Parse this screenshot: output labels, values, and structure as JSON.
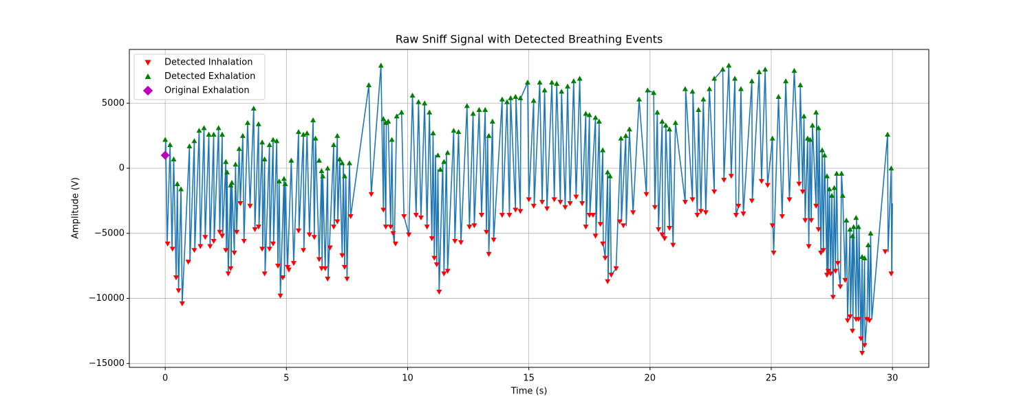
{
  "chart_data": {
    "type": "line",
    "title": "Raw Sniff Signal with Detected Breathing Events",
    "x_label": "Time (s)",
    "y_label": "Amplitude (V)",
    "xlim": [
      -1.48,
      31.5
    ],
    "ylim": [
      -15300,
      9130
    ],
    "xticks": [
      0,
      5,
      10,
      15,
      20,
      25,
      30
    ],
    "yticks": [
      {
        "value": -15000,
        "label": "−15000"
      },
      {
        "value": -10000,
        "label": "−10000"
      },
      {
        "value": -5000,
        "label": "−5000"
      },
      0,
      5000
    ],
    "grid": true,
    "legend": "upper left",
    "signal": {
      "color": "#1f77b4",
      "x": [
        0,
        0.02,
        0.08,
        0.2,
        0.28,
        0.35,
        0.45,
        0.5,
        0.55,
        0.65,
        0.7,
        1.0,
        1.02,
        1.2,
        1.22,
        1.4,
        1.45,
        1.6,
        1.65,
        1.8,
        1.85,
        2.0,
        2.02,
        2.2,
        2.25,
        2.35,
        2.37,
        2.5,
        2.52,
        2.55,
        2.6,
        2.7,
        2.72,
        2.75,
        2.85,
        2.9,
        2.95,
        3.05,
        3.1,
        3.2,
        3.25,
        3.4,
        3.5,
        3.65,
        3.7,
        3.85,
        3.87,
        4.0,
        4.02,
        4.1,
        4.12,
        4.3,
        4.32,
        4.45,
        4.47,
        4.6,
        4.65,
        4.7,
        4.75,
        4.9,
        4.92,
        4.95,
        5.05,
        5.2,
        5.3,
        5.5,
        5.52,
        5.7,
        5.72,
        5.85,
        5.95,
        6.1,
        6.15,
        6.2,
        6.35,
        6.45,
        6.47,
        6.5,
        6.6,
        6.7,
        6.72,
        6.95,
        6.97,
        7.1,
        7.12,
        7.2,
        7.3,
        7.35,
        7.4,
        7.45,
        7.5,
        7.6,
        7.65,
        8.4,
        8.5,
        8.9,
        9.0,
        9.02,
        9.1,
        9.12,
        9.2,
        9.3,
        9.35,
        9.4,
        9.45,
        9.55,
        9.75,
        9.85,
        10.05,
        10.2,
        10.35,
        10.45,
        10.55,
        10.7,
        10.8,
        10.9,
        11.0,
        11.05,
        11.1,
        11.15,
        11.2,
        11.25,
        11.3,
        11.45,
        11.5,
        11.6,
        11.65,
        11.9,
        11.95,
        12.1,
        12.2,
        12.45,
        12.55,
        12.7,
        12.75,
        12.95,
        13.05,
        13.2,
        13.25,
        13.3,
        13.35,
        13.5,
        13.55,
        13.9,
        13.92,
        14.1,
        14.2,
        14.25,
        14.45,
        14.47,
        14.65,
        14.67,
        14.95,
        15.0,
        15.2,
        15.22,
        15.45,
        15.55,
        15.65,
        15.75,
        15.95,
        16.05,
        16.15,
        16.3,
        16.35,
        16.5,
        16.6,
        16.7,
        16.85,
        16.95,
        17.1,
        17.2,
        17.35,
        17.37,
        17.5,
        17.52,
        17.75,
        17.77,
        17.9,
        17.95,
        18.05,
        18.07,
        18.15,
        18.25,
        18.27,
        18.35,
        18.4,
        18.6,
        18.8,
        18.82,
        19.0,
        19.02,
        19.15,
        19.3,
        19.55,
        19.85,
        19.9,
        20.15,
        20.2,
        20.3,
        20.35,
        20.5,
        20.52,
        20.6,
        20.65,
        20.8,
        20.82,
        20.95,
        21.05,
        21.45,
        21.47,
        21.75,
        21.77,
        21.95,
        22.0,
        22.1,
        22.2,
        22.3,
        22.45,
        22.65,
        22.67,
        23.0,
        23.05,
        23.25,
        23.35,
        23.5,
        23.55,
        23.65,
        23.75,
        23.85,
        24.2,
        24.22,
        24.5,
        24.6,
        24.75,
        24.85,
        25.05,
        25.07,
        25.1,
        25.3,
        25.45,
        25.6,
        25.75,
        25.95,
        26.15,
        26.2,
        26.3,
        26.35,
        26.4,
        26.5,
        26.55,
        26.6,
        26.65,
        26.7,
        26.85,
        26.87,
        26.95,
        26.97,
        27.05,
        27.1,
        27.15,
        27.2,
        27.3,
        27.32,
        27.35,
        27.4,
        27.45,
        27.5,
        27.55,
        27.6,
        27.65,
        27.7,
        27.75,
        27.85,
        27.9,
        27.95,
        28.05,
        28.1,
        28.15,
        28.25,
        28.27,
        28.35,
        28.37,
        28.4,
        28.5,
        28.52,
        28.6,
        28.62,
        28.7,
        28.75,
        28.77,
        28.85,
        28.87,
        28.95,
        29.0,
        29.05,
        29.1,
        29.15,
        29.8,
        29.82,
        29.95,
        29.97,
        30.0
      ],
      "values": [
        1000,
        2200,
        -5800,
        1800,
        -6200,
        700,
        -8400,
        -1200,
        -9400,
        -1600,
        -10400,
        1700,
        -7200,
        2100,
        -6300,
        2900,
        -6000,
        3100,
        -5300,
        2600,
        -6000,
        2600,
        -5600,
        3100,
        -4900,
        2600,
        -5200,
        500,
        -6300,
        -300,
        -8100,
        -1300,
        -7700,
        -1100,
        -6500,
        300,
        -4900,
        1500,
        -2700,
        2500,
        -5600,
        3500,
        -2900,
        4600,
        -4700,
        3400,
        -4500,
        2000,
        -6200,
        700,
        -8100,
        1800,
        -6200,
        2200,
        -5800,
        2100,
        -7500,
        -1000,
        -9800,
        -800,
        -8400,
        -1200,
        -7600,
        600,
        -7300,
        2800,
        -4800,
        2600,
        -6300,
        2700,
        -5100,
        3700,
        -5300,
        2300,
        -7000,
        -200,
        -7700,
        -600,
        -7700,
        0,
        -8500,
        1800,
        -4500,
        2500,
        -4100,
        700,
        -6700,
        400,
        -7600,
        -600,
        -8500,
        400,
        -3700,
        6400,
        -2000,
        7900,
        -3200,
        3800,
        -4500,
        3500,
        3600,
        -4500,
        2200,
        -5000,
        -5800,
        4000,
        4300,
        -3700,
        -5100,
        5600,
        -3600,
        5100,
        -3800,
        5000,
        -4500,
        4300,
        -5400,
        2700,
        -6900,
        1000,
        -7400,
        -100,
        -9500,
        500,
        -8100,
        1200,
        -7900,
        2900,
        -5600,
        2800,
        -5700,
        4800,
        -4500,
        4200,
        -4400,
        4500,
        -3600,
        4500,
        -4900,
        2500,
        -6600,
        3600,
        -5500,
        5300,
        -3600,
        5100,
        -3600,
        5400,
        -3200,
        5500,
        -3300,
        5400,
        6600,
        -2400,
        5200,
        -2900,
        6600,
        -2600,
        6000,
        -3100,
        6600,
        -2400,
        6500,
        -2600,
        5900,
        -3000,
        6300,
        -2700,
        6700,
        -2200,
        6900,
        -2700,
        4200,
        -4500,
        4100,
        -3600,
        3900,
        -5200,
        3600,
        -4300,
        1400,
        -5800,
        -6900,
        -300,
        -8700,
        -600,
        -8200,
        -7700,
        2300,
        -4100,
        2500,
        -4400,
        3000,
        -3400,
        5300,
        -2000,
        6000,
        5800,
        -3000,
        4300,
        -4700,
        3600,
        -5100,
        -5400,
        3300,
        -4600,
        3000,
        -5900,
        3500,
        -2600,
        6100,
        -2400,
        5900,
        -3600,
        4500,
        -3300,
        5300,
        -3400,
        6100,
        -1800,
        6900,
        7600,
        -900,
        7900,
        -600,
        6900,
        -3600,
        -2900,
        6100,
        -3500,
        6700,
        -2500,
        7400,
        -1000,
        7600,
        -1300,
        2300,
        -4400,
        -6500,
        5500,
        -3700,
        6700,
        -2400,
        7500,
        -1200,
        6400,
        -1800,
        4000,
        -4000,
        2300,
        -6000,
        2200,
        -4000,
        3300,
        -2900,
        4300,
        -4700,
        3100,
        -6500,
        1400,
        -6300,
        1000,
        -8200,
        -600,
        -7900,
        -1600,
        -8100,
        -2100,
        -9900,
        -1500,
        -7900,
        -400,
        -7300,
        -9100,
        -400,
        -2100,
        -8600,
        -4000,
        -11700,
        -4700,
        -11400,
        -5200,
        -12500,
        -4500,
        -11600,
        -3800,
        -11600,
        -4500,
        -13100,
        -6800,
        -14200,
        -6900,
        -13600,
        -11600,
        -5900,
        -11700,
        -5000,
        -11600,
        2600,
        -6400,
        0,
        -8100,
        -2700
      ]
    },
    "series": [
      {
        "name": "Detected Inhalation",
        "color": "#ff0000",
        "marker": "v",
        "x": [
          0.1,
          0.3,
          0.45,
          0.55,
          0.7,
          0.95,
          1.2,
          1.45,
          1.65,
          1.85,
          2.0,
          2.25,
          2.35,
          2.5,
          2.6,
          2.7,
          2.85,
          2.95,
          3.1,
          3.25,
          3.5,
          3.7,
          3.85,
          4.0,
          4.1,
          4.3,
          4.45,
          4.65,
          4.75,
          4.85,
          5.05,
          5.1,
          5.3,
          5.5,
          5.7,
          5.95,
          6.15,
          6.35,
          6.45,
          6.6,
          6.7,
          6.8,
          6.95,
          7.1,
          7.3,
          7.4,
          7.5,
          7.65,
          8.5,
          9.0,
          9.1,
          9.3,
          9.4,
          9.5,
          9.85,
          10.05,
          10.35,
          10.55,
          10.8,
          11.0,
          11.1,
          11.2,
          11.3,
          11.5,
          11.65,
          11.95,
          12.2,
          12.55,
          12.75,
          13.05,
          13.25,
          13.35,
          13.55,
          13.9,
          14.2,
          14.45,
          14.65,
          15.0,
          15.2,
          15.55,
          15.75,
          16.05,
          16.3,
          16.5,
          16.7,
          16.95,
          17.2,
          17.35,
          17.5,
          17.65,
          17.75,
          17.95,
          18.05,
          18.15,
          18.25,
          18.4,
          18.6,
          18.75,
          18.9,
          19.3,
          19.85,
          20.2,
          20.35,
          20.5,
          20.6,
          20.8,
          20.95,
          21.45,
          21.75,
          21.95,
          22.1,
          22.3,
          22.65,
          23.05,
          23.35,
          23.55,
          23.65,
          23.85,
          24.2,
          24.6,
          24.85,
          25.05,
          25.1,
          25.45,
          25.75,
          26.15,
          26.3,
          26.4,
          26.55,
          26.65,
          26.85,
          26.95,
          27.05,
          27.15,
          27.3,
          27.35,
          27.45,
          27.55,
          27.65,
          27.75,
          27.85,
          28.05,
          28.15,
          28.25,
          28.35,
          28.5,
          28.6,
          28.7,
          28.75,
          28.85,
          28.95,
          29.05,
          29.7,
          29.95
        ],
        "values": [
          -5800,
          -6200,
          -8400,
          -9400,
          -10400,
          -7200,
          -6300,
          -6000,
          -5300,
          -6000,
          -5600,
          -4900,
          -5200,
          -6300,
          -8100,
          -7700,
          -6500,
          -4900,
          -2700,
          -5600,
          -2900,
          -4700,
          -4500,
          -6200,
          -8100,
          -6200,
          -5800,
          -7500,
          -9800,
          -8400,
          -7600,
          -7800,
          -7300,
          -4800,
          -6300,
          -5100,
          -5300,
          -7000,
          -7700,
          -7700,
          -8500,
          -6100,
          -4500,
          -4100,
          -6700,
          -7600,
          -8500,
          -3700,
          -2000,
          -3200,
          -4500,
          -4500,
          -5000,
          -5800,
          -3700,
          -5100,
          -3600,
          -3800,
          -4500,
          -5400,
          -6900,
          -7400,
          -9500,
          -8100,
          -7900,
          -5600,
          -5700,
          -4500,
          -4400,
          -3600,
          -4900,
          -6600,
          -5500,
          -3600,
          -3600,
          -3200,
          -3300,
          -2400,
          -2900,
          -2600,
          -3100,
          -2400,
          -2600,
          -3000,
          -2700,
          -2200,
          -2700,
          -4500,
          -3600,
          -3600,
          -5200,
          -4300,
          -5800,
          -6900,
          -8700,
          -8200,
          -7700,
          -4100,
          -4400,
          -3400,
          -2000,
          -3000,
          -4700,
          -5100,
          -5400,
          -4600,
          -5900,
          -2600,
          -2400,
          -3600,
          -3300,
          -3400,
          -1800,
          -900,
          -600,
          -3600,
          -2900,
          -3500,
          -2500,
          -1000,
          -1300,
          -4400,
          -6500,
          -3700,
          -2400,
          -1200,
          -1800,
          -4000,
          -6000,
          -4000,
          -2900,
          -4700,
          -6500,
          -6300,
          -8200,
          -7900,
          -8100,
          -9900,
          -7900,
          -7300,
          -9100,
          -8600,
          -11700,
          -11400,
          -12500,
          -11600,
          -11600,
          -13100,
          -14200,
          -13600,
          -11600,
          -11700,
          -6400,
          -8100
        ]
      },
      {
        "name": "Detected Exhalation",
        "color": "#008000",
        "marker": "^",
        "x": [
          0.0,
          0.2,
          0.35,
          0.5,
          0.65,
          1.0,
          1.2,
          1.4,
          1.6,
          1.8,
          2.0,
          2.2,
          2.35,
          2.5,
          2.55,
          2.7,
          2.75,
          2.9,
          3.05,
          3.2,
          3.4,
          3.65,
          3.85,
          4.0,
          4.1,
          4.3,
          4.45,
          4.6,
          4.7,
          4.9,
          4.95,
          5.2,
          5.5,
          5.7,
          5.85,
          6.1,
          6.2,
          6.35,
          6.45,
          6.5,
          6.7,
          6.95,
          7.1,
          7.2,
          7.3,
          7.4,
          7.6,
          8.4,
          8.9,
          9.0,
          9.1,
          9.2,
          9.35,
          9.55,
          9.75,
          10.2,
          10.45,
          10.7,
          10.9,
          11.05,
          11.25,
          11.35,
          11.5,
          11.65,
          11.9,
          12.1,
          12.45,
          12.7,
          12.95,
          13.2,
          13.35,
          13.5,
          13.9,
          14.1,
          14.25,
          14.45,
          14.65,
          14.95,
          15.2,
          15.45,
          15.65,
          15.95,
          16.15,
          16.35,
          16.6,
          16.85,
          17.1,
          17.35,
          17.5,
          17.75,
          17.9,
          18.05,
          18.25,
          18.35,
          18.8,
          19.0,
          19.15,
          19.55,
          19.9,
          20.15,
          20.3,
          20.5,
          20.65,
          20.8,
          21.05,
          21.45,
          21.75,
          22.0,
          22.2,
          22.45,
          22.65,
          23.0,
          23.25,
          23.5,
          23.75,
          24.2,
          24.5,
          24.75,
          25.05,
          25.3,
          25.6,
          25.95,
          26.2,
          26.35,
          26.5,
          26.6,
          26.7,
          26.85,
          26.95,
          27.1,
          27.2,
          27.3,
          27.4,
          27.5,
          27.6,
          27.7,
          27.9,
          27.95,
          28.1,
          28.25,
          28.35,
          28.4,
          28.5,
          28.6,
          28.75,
          28.85,
          29.0,
          29.1,
          29.8,
          29.95
        ],
        "values": [
          2200,
          1800,
          700,
          -1200,
          -1600,
          1700,
          2100,
          2900,
          3100,
          2600,
          2600,
          3100,
          2600,
          500,
          -300,
          -1300,
          -1100,
          300,
          1500,
          2500,
          3500,
          4600,
          3400,
          2000,
          700,
          1800,
          2200,
          2100,
          -1000,
          -800,
          -1200,
          600,
          2800,
          2600,
          2700,
          3700,
          2300,
          600,
          -200,
          -600,
          0,
          1800,
          2500,
          700,
          400,
          -600,
          400,
          6400,
          7900,
          3800,
          3500,
          3600,
          2200,
          4000,
          4300,
          5600,
          5100,
          5000,
          4300,
          2700,
          1000,
          -100,
          500,
          1200,
          2900,
          2800,
          4800,
          4200,
          4500,
          4500,
          2500,
          3600,
          5300,
          5100,
          5400,
          5500,
          5400,
          6600,
          5200,
          6600,
          6000,
          6600,
          6500,
          5900,
          6300,
          6700,
          6900,
          4200,
          4100,
          3900,
          3600,
          1400,
          -300,
          -600,
          2300,
          2500,
          3000,
          5300,
          6000,
          5800,
          4300,
          3600,
          3300,
          3000,
          3500,
          6100,
          5900,
          4500,
          5300,
          6100,
          6900,
          7600,
          7900,
          6900,
          6100,
          6700,
          7400,
          7600,
          2300,
          5500,
          6700,
          7500,
          6400,
          4000,
          2300,
          2200,
          3300,
          4300,
          3100,
          1400,
          1000,
          -600,
          -1600,
          -2100,
          -1500,
          -400,
          -400,
          -2100,
          -4000,
          -4700,
          -5200,
          -4500,
          -3800,
          -4500,
          -6800,
          -6900,
          -5900,
          -5000,
          2600,
          0
        ]
      },
      {
        "name": "Original Exhalation",
        "color": "#bf00bf",
        "marker": "D",
        "x": [
          0
        ],
        "values": [
          1000
        ]
      }
    ]
  }
}
